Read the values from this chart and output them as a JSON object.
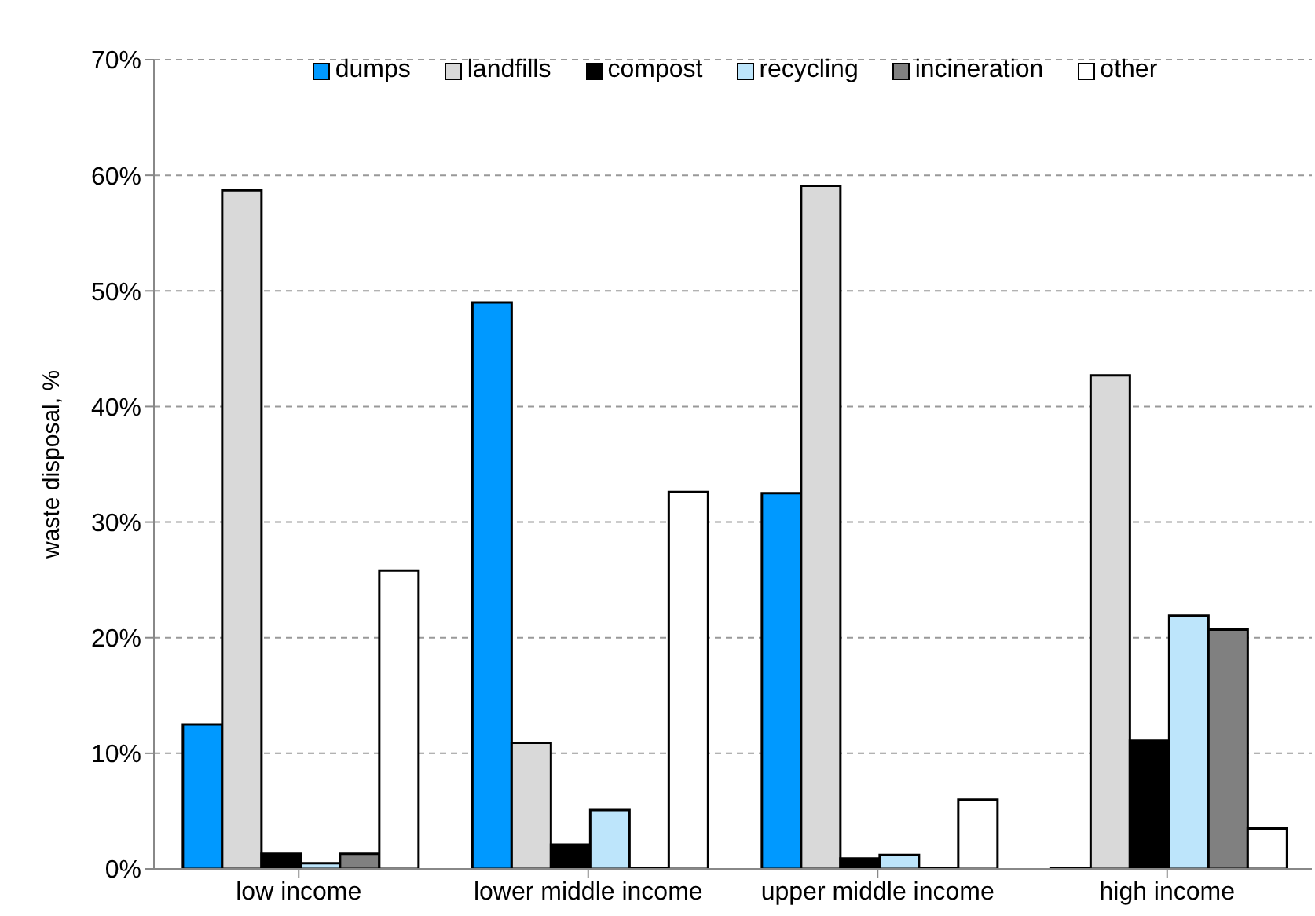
{
  "chart_data": {
    "type": "bar",
    "ylabel": "waste disposal, %",
    "categories": [
      "low income",
      "lower middle income",
      "upper middle income",
      "high income"
    ],
    "series": [
      {
        "name": "dumps",
        "color": "#0099ff",
        "values": [
          12.5,
          49.0,
          32.5,
          0.1
        ]
      },
      {
        "name": "landfills",
        "color": "#d9d9d9",
        "values": [
          58.7,
          10.9,
          59.1,
          42.7
        ]
      },
      {
        "name": "compost",
        "color": "#000000",
        "values": [
          1.3,
          2.1,
          0.9,
          11.1
        ]
      },
      {
        "name": "recycling",
        "color": "#bde5fb",
        "values": [
          0.5,
          5.1,
          1.2,
          21.9
        ]
      },
      {
        "name": "incineration",
        "color": "#808080",
        "values": [
          1.3,
          0.1,
          0.1,
          20.7
        ]
      },
      {
        "name": "other",
        "color": "#ffffff",
        "values": [
          25.8,
          32.6,
          6.0,
          3.5
        ]
      }
    ],
    "ylim": [
      0,
      70
    ],
    "yticks": [
      {
        "value": 0,
        "label": "0%"
      },
      {
        "value": 10,
        "label": "10%"
      },
      {
        "value": 20,
        "label": "20%"
      },
      {
        "value": 30,
        "label": "30%"
      },
      {
        "value": 40,
        "label": "40%"
      },
      {
        "value": 50,
        "label": "50%"
      },
      {
        "value": 60,
        "label": "60%"
      },
      {
        "value": 70,
        "label": "70%"
      }
    ],
    "grid": "y",
    "legend": "top"
  }
}
